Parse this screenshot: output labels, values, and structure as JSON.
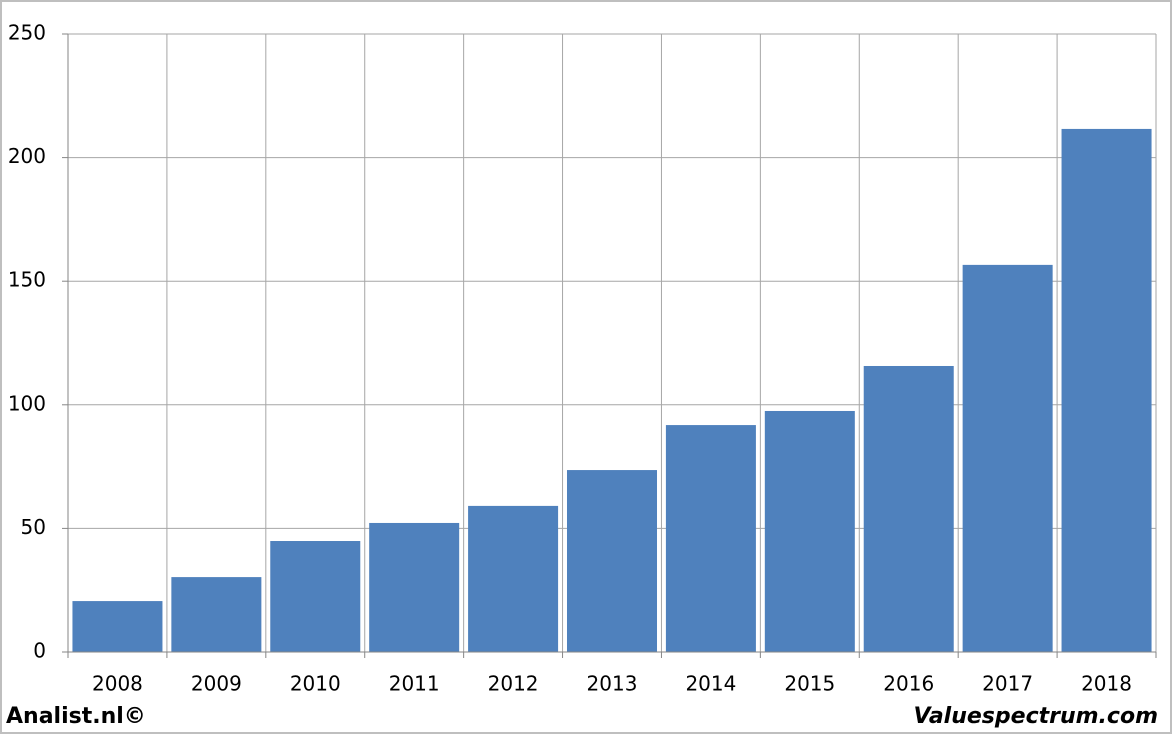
{
  "chart_data": {
    "type": "bar",
    "categories": [
      "2008",
      "2009",
      "2010",
      "2011",
      "2012",
      "2013",
      "2014",
      "2015",
      "2016",
      "2017",
      "2018"
    ],
    "values": [
      20.6,
      30.3,
      44.9,
      52.2,
      59.1,
      73.6,
      91.8,
      97.5,
      115.7,
      156.6,
      211.6
    ],
    "color": "#4f81bd",
    "ylim": [
      0,
      250
    ],
    "yticks": [
      0,
      50,
      100,
      150,
      200,
      250
    ],
    "grid": true
  },
  "footer": {
    "left": "Analist.nl©",
    "right": "Valuespectrum.com"
  }
}
